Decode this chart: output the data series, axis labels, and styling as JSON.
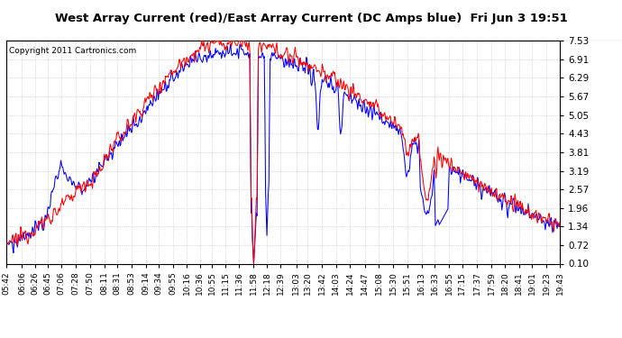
{
  "title": "West Array Current (red)/East Array Current (DC Amps blue)  Fri Jun 3 19:51",
  "copyright": "Copyright 2011 Cartronics.com",
  "yticks": [
    0.1,
    0.72,
    1.34,
    1.96,
    2.57,
    3.19,
    3.81,
    4.43,
    5.05,
    5.67,
    6.29,
    6.91,
    7.53
  ],
  "ymin": 0.1,
  "ymax": 7.53,
  "bg_color": "#ffffff",
  "plot_bg_color": "#ffffff",
  "grid_color": "#bbbbbb",
  "red_color": "#ff0000",
  "blue_color": "#0000ff",
  "xtick_labels": [
    "05:42",
    "06:06",
    "06:26",
    "06:45",
    "07:06",
    "07:28",
    "07:50",
    "08:11",
    "08:31",
    "08:53",
    "09:14",
    "09:34",
    "09:55",
    "10:16",
    "10:36",
    "10:55",
    "11:15",
    "11:36",
    "11:58",
    "12:18",
    "12:39",
    "13:03",
    "13:20",
    "13:42",
    "14:03",
    "14:24",
    "14:47",
    "15:08",
    "15:30",
    "15:51",
    "16:13",
    "16:33",
    "16:55",
    "17:15",
    "17:37",
    "17:59",
    "18:20",
    "18:41",
    "19:01",
    "19:23",
    "19:43"
  ],
  "title_fontsize": 9.5,
  "copyright_fontsize": 6.5,
  "ytick_fontsize": 7.5,
  "xtick_fontsize": 6.5
}
